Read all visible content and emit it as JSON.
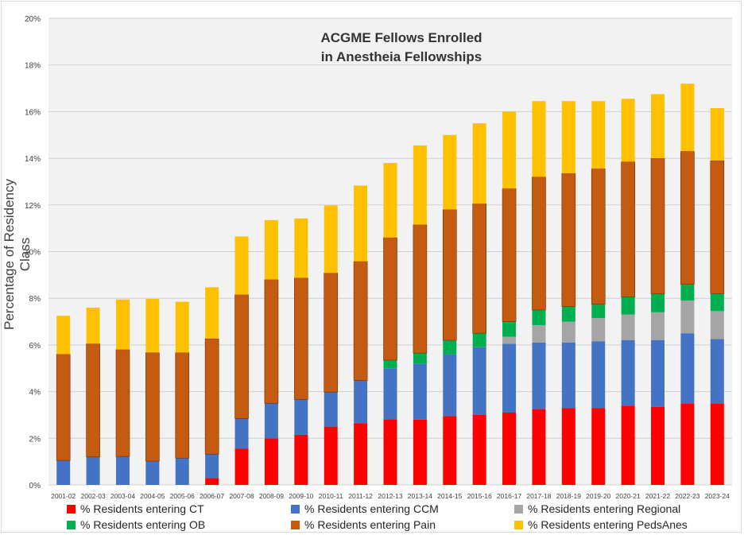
{
  "chart_data": {
    "type": "bar",
    "stacked": true,
    "title": [
      "ACGME Fellows Enrolled",
      "in Anestheia Fellowships"
    ],
    "ylabel": "Percentage of Residency Class",
    "xlabel": "",
    "ylim": [
      0,
      20
    ],
    "y_ticks": [
      "0%",
      "2%",
      "4%",
      "6%",
      "8%",
      "10%",
      "12%",
      "14%",
      "16%",
      "18%",
      "20%"
    ],
    "grid": true,
    "legend_position": "bottom",
    "categories": [
      "2001-02",
      "2002-03",
      "2003-04",
      "2004-05",
      "2005-06",
      "2006-07",
      "2007-08",
      "2008-09",
      "2009-10",
      "2010-11",
      "2011-12",
      "2012-13",
      "2013-14",
      "2014-15",
      "2015-16",
      "2016-17",
      "2017-18",
      "2018-19",
      "2019-20",
      "2020-21",
      "2021-22",
      "2022-23",
      "2023-24"
    ],
    "series": [
      {
        "name": "% Residents entering CT",
        "color": "#ff0000",
        "values": [
          0,
          0,
          0,
          0,
          0,
          0.3,
          1.55,
          2.0,
          2.15,
          2.5,
          2.65,
          2.82,
          2.8,
          2.95,
          3.0,
          3.1,
          3.25,
          3.3,
          3.3,
          3.4,
          3.35,
          3.5,
          3.5
        ]
      },
      {
        "name": "% Residents entering CCM",
        "color": "#4472c4",
        "values": [
          1.05,
          1.2,
          1.22,
          1.02,
          1.15,
          1.02,
          1.3,
          1.5,
          1.52,
          1.48,
          1.83,
          2.18,
          2.4,
          2.65,
          2.9,
          2.95,
          2.85,
          2.8,
          2.85,
          2.8,
          2.85,
          3.0,
          2.75
        ]
      },
      {
        "name": "% Residents entering Regional",
        "color": "#a5a5a5",
        "values": [
          0,
          0,
          0,
          0,
          0,
          0,
          0,
          0,
          0,
          0,
          0,
          0,
          0,
          0,
          0,
          0.3,
          0.75,
          0.9,
          1.0,
          1.1,
          1.2,
          1.4,
          1.2
        ]
      },
      {
        "name": "% Residents entering OB",
        "color": "#00b050",
        "values": [
          0,
          0,
          0,
          0,
          0,
          0,
          0,
          0,
          0,
          0,
          0,
          0.35,
          0.45,
          0.6,
          0.6,
          0.65,
          0.65,
          0.65,
          0.6,
          0.75,
          0.8,
          0.7,
          0.75
        ]
      },
      {
        "name": "% Residents entering Pain",
        "color": "#c55a11",
        "values": [
          4.55,
          4.85,
          4.58,
          4.65,
          4.52,
          4.95,
          5.3,
          5.3,
          5.2,
          5.1,
          5.1,
          5.25,
          5.5,
          5.6,
          5.55,
          5.7,
          5.7,
          5.7,
          5.8,
          5.8,
          5.8,
          5.7,
          5.7
        ]
      },
      {
        "name": "% Residents entering PedsAnes",
        "color": "#ffc000",
        "values": [
          1.65,
          1.55,
          2.15,
          2.3,
          2.18,
          2.2,
          2.5,
          2.55,
          2.55,
          2.9,
          3.25,
          3.2,
          3.4,
          3.2,
          3.45,
          3.3,
          3.25,
          3.1,
          2.9,
          2.7,
          2.75,
          2.9,
          2.25
        ]
      }
    ]
  }
}
